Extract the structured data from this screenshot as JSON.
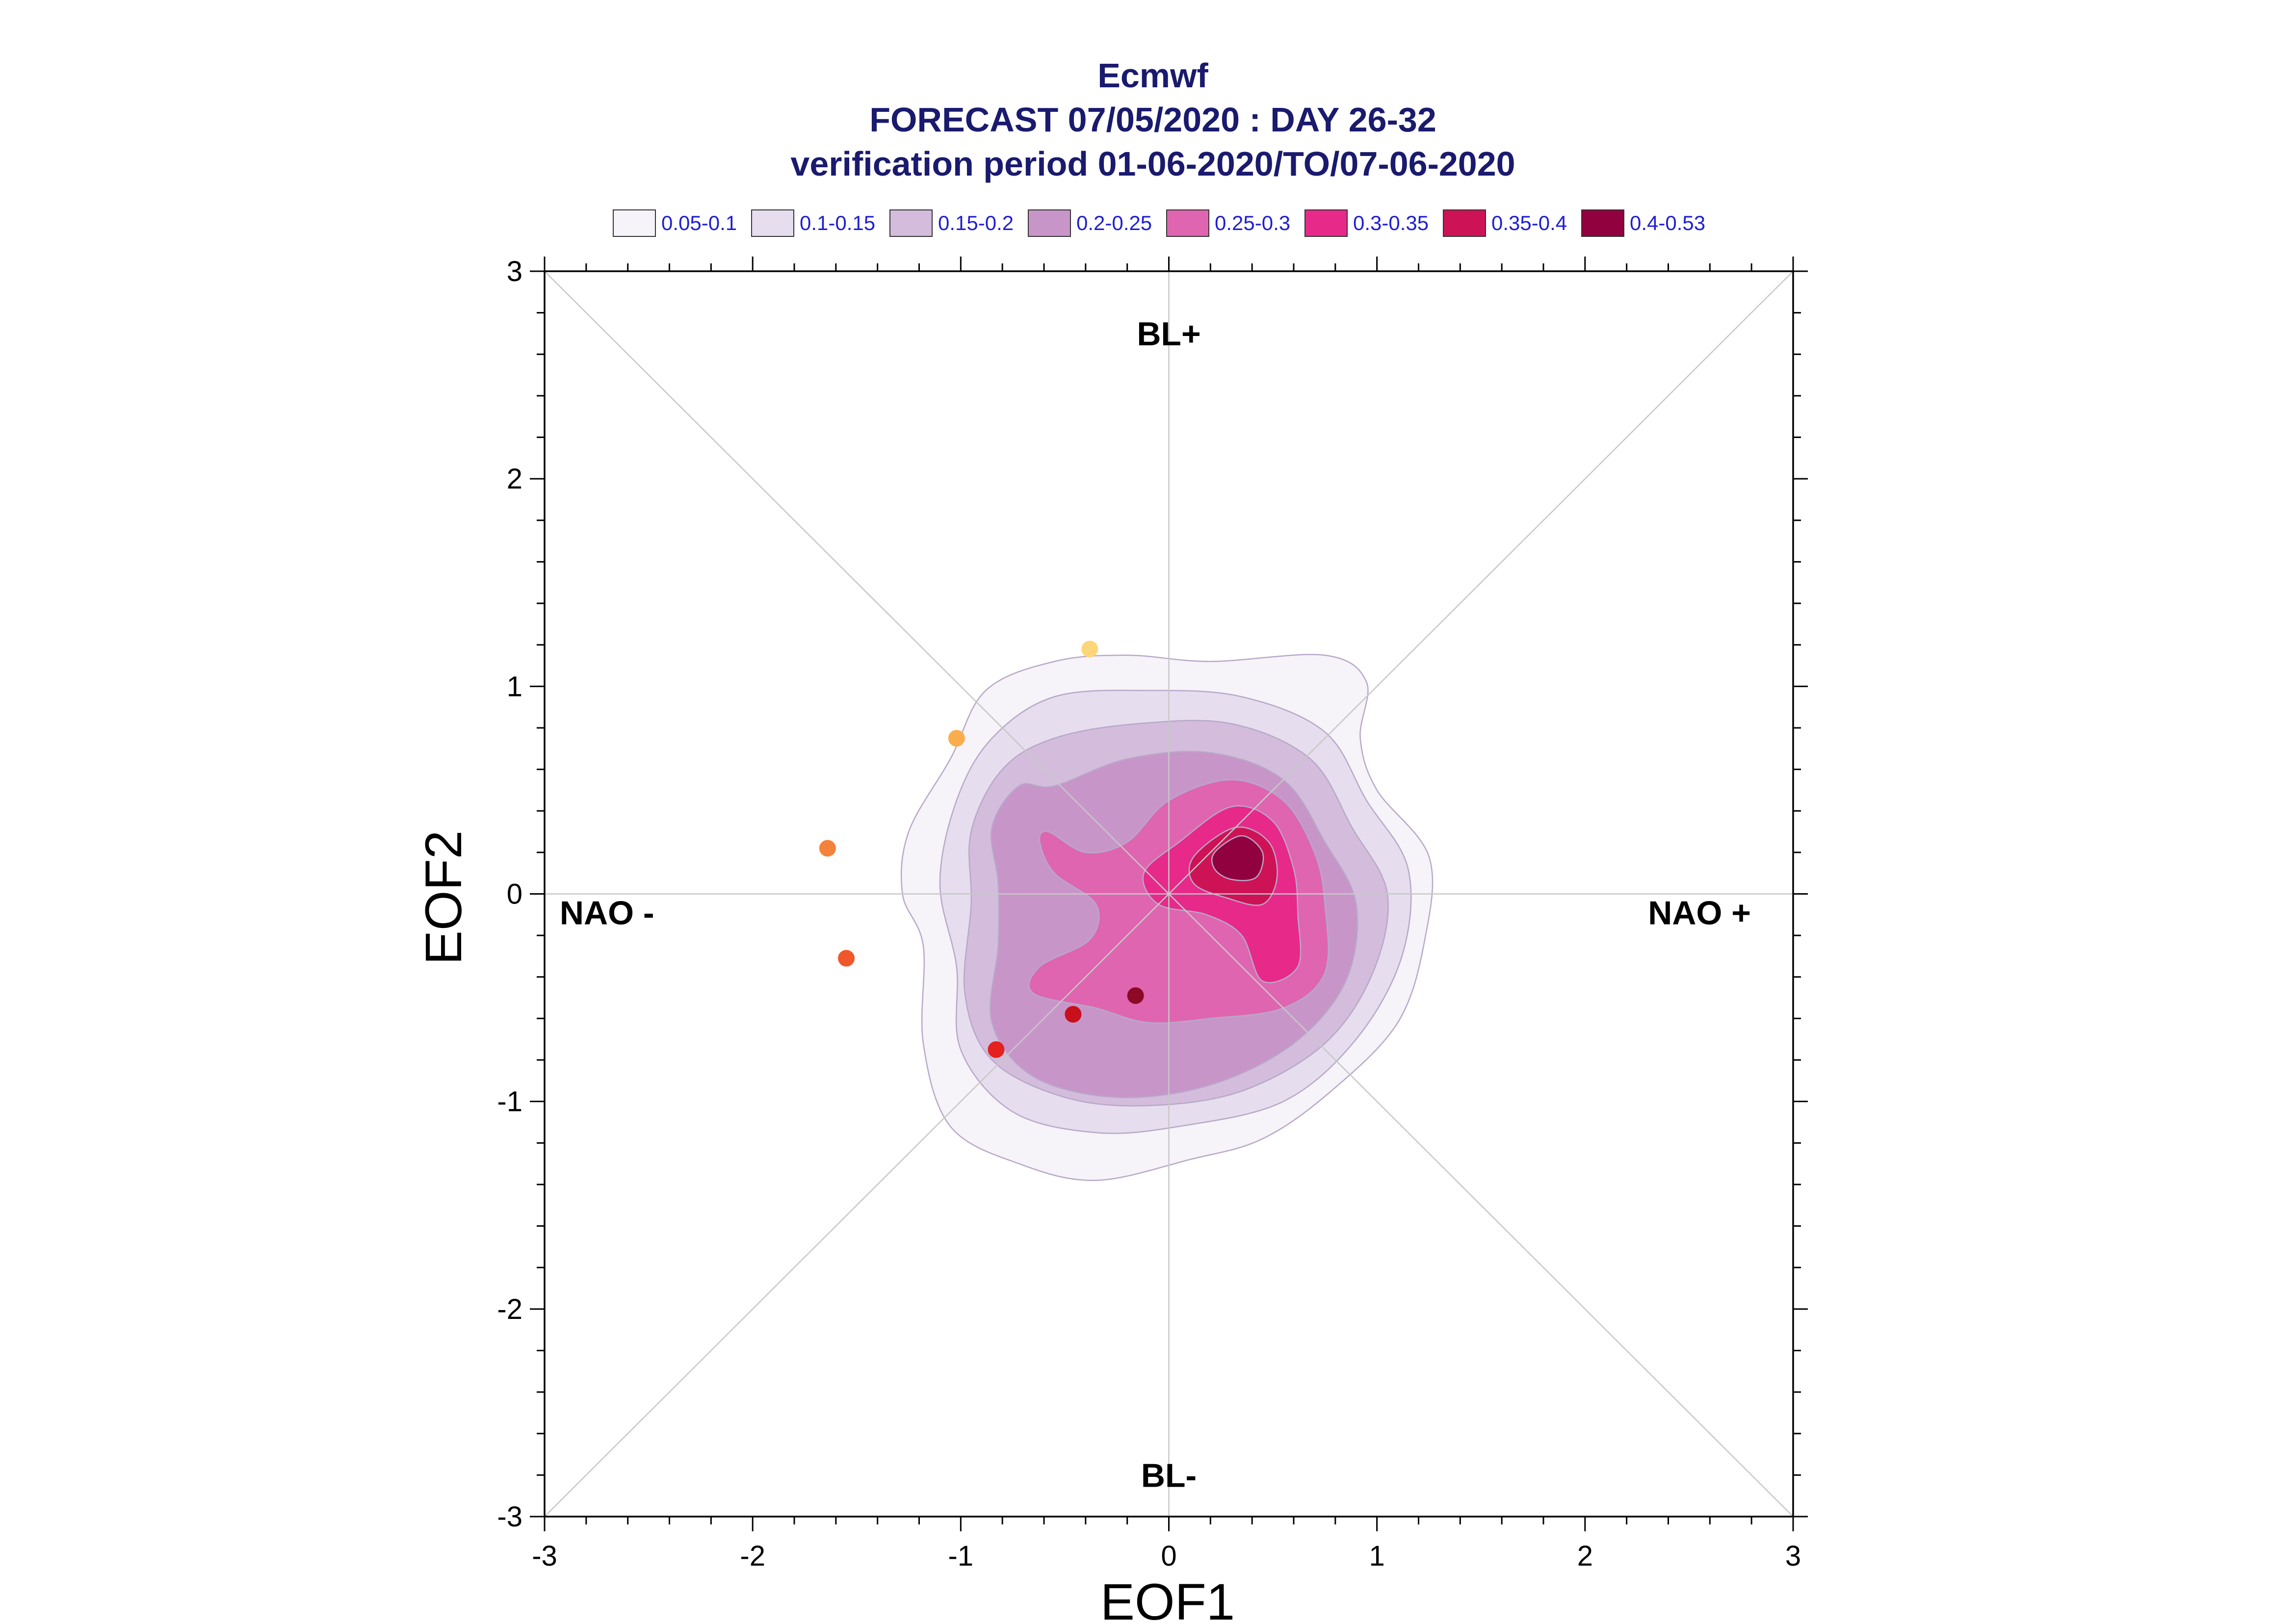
{
  "chart_data": {
    "type": "scatter",
    "title": "Ecmwf",
    "subtitle": "FORECAST 07/05/2020 : DAY 26-32",
    "subtitle2": "verification period 01-06-2020/TO/07-06-2020",
    "xlabel": "EOF1",
    "ylabel": "EOF2",
    "xlim": [
      -3,
      3
    ],
    "ylim": [
      -3,
      3
    ],
    "xticks": [
      -3,
      -2,
      -1,
      0,
      1,
      2,
      3
    ],
    "yticks": [
      -3,
      -2,
      -1,
      0,
      1,
      2,
      3
    ],
    "grid": false,
    "legend_position": "top",
    "legend": [
      {
        "label": "0.05-0.1",
        "color": "#f6f3f9"
      },
      {
        "label": "0.1-0.15",
        "color": "#e6ddee"
      },
      {
        "label": "0.15-0.2",
        "color": "#d3bcdc"
      },
      {
        "label": "0.2-0.25",
        "color": "#c895c9"
      },
      {
        "label": "0.25-0.3",
        "color": "#df65b0"
      },
      {
        "label": "0.3-0.35",
        "color": "#e7298a"
      },
      {
        "label": "0.35-0.4",
        "color": "#ce1256"
      },
      {
        "label": "0.4-0.53",
        "color": "#91003f"
      }
    ],
    "regions": [
      {
        "label": "BL+",
        "x": 0,
        "y": 2.7
      },
      {
        "label": "BL-",
        "x": 0,
        "y": -2.8
      },
      {
        "label": "NAO -",
        "x": -2.7,
        "y": -0.09
      },
      {
        "label": "NAO +",
        "x": 2.55,
        "y": -0.09
      }
    ],
    "contour_levels": [
      {
        "range": "0.05-0.1",
        "color": "#f6f3f9",
        "points": [
          [
            -0.55,
            1.12
          ],
          [
            -0.2,
            1.15
          ],
          [
            0.2,
            1.12
          ],
          [
            0.75,
            1.15
          ],
          [
            0.95,
            1.02
          ],
          [
            0.92,
            0.75
          ],
          [
            1.0,
            0.5
          ],
          [
            1.25,
            0.18
          ],
          [
            1.23,
            -0.22
          ],
          [
            1.1,
            -0.62
          ],
          [
            0.78,
            -0.95
          ],
          [
            0.45,
            -1.18
          ],
          [
            0.1,
            -1.28
          ],
          [
            -0.35,
            -1.38
          ],
          [
            -0.72,
            -1.3
          ],
          [
            -1.05,
            -1.12
          ],
          [
            -1.18,
            -0.72
          ],
          [
            -1.18,
            -0.25
          ],
          [
            -1.28,
            0.0
          ],
          [
            -1.25,
            0.3
          ],
          [
            -1.05,
            0.65
          ],
          [
            -0.88,
            0.98
          ]
        ]
      },
      {
        "range": "0.1-0.15",
        "color": "#e6ddee",
        "points": [
          [
            -0.55,
            0.95
          ],
          [
            -0.1,
            0.98
          ],
          [
            0.35,
            0.95
          ],
          [
            0.75,
            0.78
          ],
          [
            0.95,
            0.45
          ],
          [
            1.15,
            0.12
          ],
          [
            1.12,
            -0.3
          ],
          [
            0.9,
            -0.7
          ],
          [
            0.55,
            -1.0
          ],
          [
            0.05,
            -1.12
          ],
          [
            -0.35,
            -1.15
          ],
          [
            -0.75,
            -1.05
          ],
          [
            -1.0,
            -0.75
          ],
          [
            -1.02,
            -0.35
          ],
          [
            -1.1,
            0.05
          ],
          [
            -1.02,
            0.45
          ],
          [
            -0.85,
            0.75
          ]
        ]
      },
      {
        "range": "0.15-0.2",
        "color": "#d3bcdc",
        "points": [
          [
            -0.55,
            0.75
          ],
          [
            -0.15,
            0.82
          ],
          [
            0.3,
            0.82
          ],
          [
            0.68,
            0.65
          ],
          [
            0.88,
            0.32
          ],
          [
            1.05,
            0.0
          ],
          [
            0.98,
            -0.38
          ],
          [
            0.75,
            -0.72
          ],
          [
            0.35,
            -0.95
          ],
          [
            -0.1,
            -1.02
          ],
          [
            -0.5,
            -0.98
          ],
          [
            -0.85,
            -0.8
          ],
          [
            -0.98,
            -0.48
          ],
          [
            -0.95,
            -0.05
          ],
          [
            -0.95,
            0.3
          ],
          [
            -0.8,
            0.6
          ]
        ]
      },
      {
        "range": "0.2-0.25",
        "color": "#c895c9",
        "points": [
          [
            -0.55,
            0.52
          ],
          [
            -0.2,
            0.65
          ],
          [
            0.2,
            0.68
          ],
          [
            0.55,
            0.55
          ],
          [
            0.75,
            0.25
          ],
          [
            0.9,
            -0.05
          ],
          [
            0.85,
            -0.42
          ],
          [
            0.6,
            -0.72
          ],
          [
            0.2,
            -0.92
          ],
          [
            -0.25,
            -0.98
          ],
          [
            -0.65,
            -0.88
          ],
          [
            -0.85,
            -0.62
          ],
          [
            -0.82,
            -0.25
          ],
          [
            -0.82,
            0.05
          ],
          [
            -0.85,
            0.32
          ],
          [
            -0.72,
            0.52
          ]
        ]
      },
      {
        "range": "0.25-0.3",
        "color": "#df65b0",
        "points": [
          [
            0.0,
            0.45
          ],
          [
            0.3,
            0.55
          ],
          [
            0.55,
            0.45
          ],
          [
            0.7,
            0.2
          ],
          [
            0.75,
            -0.05
          ],
          [
            0.75,
            -0.38
          ],
          [
            0.55,
            -0.55
          ],
          [
            0.2,
            -0.6
          ],
          [
            -0.1,
            -0.62
          ],
          [
            -0.35,
            -0.55
          ],
          [
            -0.65,
            -0.48
          ],
          [
            -0.62,
            -0.35
          ],
          [
            -0.38,
            -0.22
          ],
          [
            -0.35,
            -0.05
          ],
          [
            -0.55,
            0.1
          ],
          [
            -0.62,
            0.25
          ],
          [
            -0.58,
            0.3
          ],
          [
            -0.4,
            0.2
          ],
          [
            -0.2,
            0.25
          ]
        ]
      },
      {
        "range": "0.3-0.35",
        "color": "#e7298a",
        "points": [
          [
            0.05,
            0.25
          ],
          [
            0.3,
            0.42
          ],
          [
            0.5,
            0.35
          ],
          [
            0.6,
            0.12
          ],
          [
            0.62,
            -0.1
          ],
          [
            0.62,
            -0.35
          ],
          [
            0.45,
            -0.42
          ],
          [
            0.35,
            -0.2
          ],
          [
            0.18,
            -0.1
          ],
          [
            -0.05,
            -0.05
          ],
          [
            -0.12,
            0.1
          ]
        ]
      },
      {
        "range": "0.35-0.4",
        "color": "#ce1256",
        "points": [
          [
            0.12,
            0.18
          ],
          [
            0.32,
            0.32
          ],
          [
            0.48,
            0.25
          ],
          [
            0.52,
            0.08
          ],
          [
            0.45,
            -0.05
          ],
          [
            0.28,
            -0.02
          ],
          [
            0.12,
            0.05
          ]
        ]
      },
      {
        "range": "0.4-0.53",
        "color": "#91003f",
        "points": [
          [
            0.22,
            0.2
          ],
          [
            0.35,
            0.28
          ],
          [
            0.45,
            0.2
          ],
          [
            0.42,
            0.08
          ],
          [
            0.3,
            0.07
          ],
          [
            0.22,
            0.12
          ]
        ]
      }
    ],
    "points": [
      {
        "x": -0.38,
        "y": 1.18,
        "color": "#fdd67a"
      },
      {
        "x": -1.02,
        "y": 0.75,
        "color": "#fbac4d"
      },
      {
        "x": -1.64,
        "y": 0.22,
        "color": "#f4823a"
      },
      {
        "x": -1.55,
        "y": -0.31,
        "color": "#f0582c"
      },
      {
        "x": -0.83,
        "y": -0.75,
        "color": "#e3211e"
      },
      {
        "x": -0.46,
        "y": -0.58,
        "color": "#c7101c"
      },
      {
        "x": -0.16,
        "y": -0.49,
        "color": "#8c0a26"
      }
    ]
  }
}
